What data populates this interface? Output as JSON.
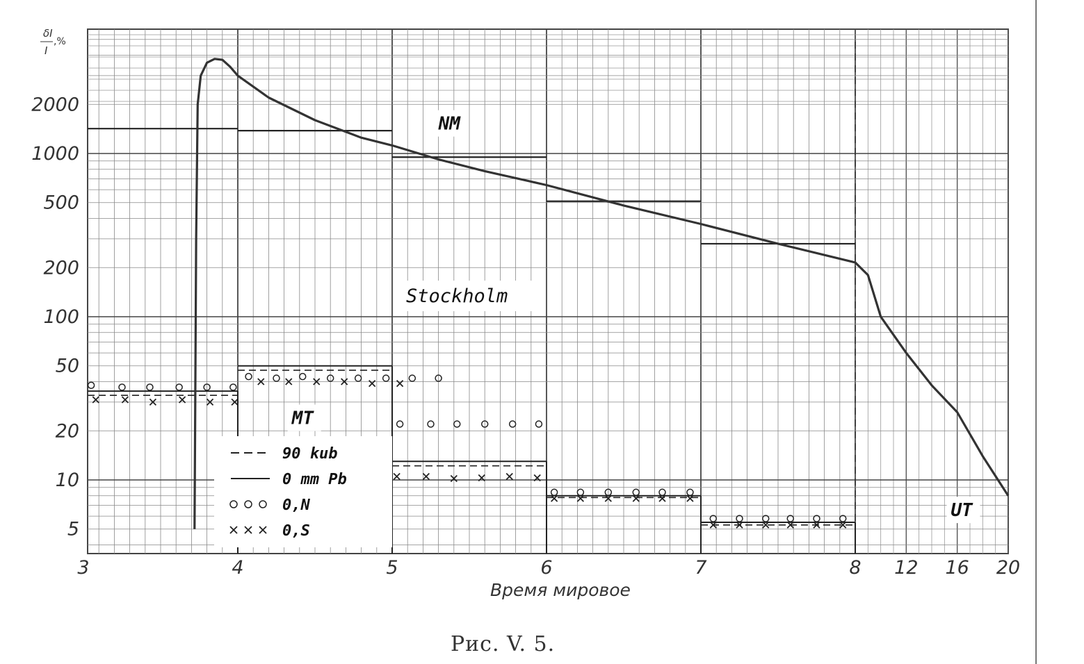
{
  "chart_data": {
    "type": "line",
    "title": "",
    "ylabel_num": "δI",
    "ylabel_den": "I",
    "ylabel_unit": ",%",
    "xlabel": "Время мировое",
    "caption": "Рис. V. 5.",
    "station_label": "Stockholm",
    "yscale": "log",
    "ylim": [
      4,
      5000
    ],
    "yticks": [
      {
        "value": 5,
        "label": "5"
      },
      {
        "value": 10,
        "label": "10"
      },
      {
        "value": 20,
        "label": "20"
      },
      {
        "value": 50,
        "label": "50"
      },
      {
        "value": 100,
        "label": "100"
      },
      {
        "value": 200,
        "label": "200"
      },
      {
        "value": 500,
        "label": "500"
      },
      {
        "value": 1000,
        "label": "1000"
      },
      {
        "value": 2000,
        "label": "2000"
      }
    ],
    "xticks": [
      {
        "value": 3,
        "label": "3"
      },
      {
        "value": 4,
        "label": "4"
      },
      {
        "value": 5,
        "label": "5"
      },
      {
        "value": 6,
        "label": "6"
      },
      {
        "value": 7,
        "label": "7"
      },
      {
        "value": 8,
        "label": "8"
      },
      {
        "value": 12,
        "label": "12"
      },
      {
        "value": 16,
        "label": "16"
      },
      {
        "value": 20,
        "label": "20"
      }
    ],
    "series_labels": [
      {
        "text": "NM",
        "x": 5.3,
        "y": 1400
      },
      {
        "text": "MT",
        "x": 4.35,
        "y": 22
      },
      {
        "text": "UT",
        "x": 15.5,
        "y": 6
      }
    ],
    "legend": [
      {
        "symbol": "dash",
        "label": "90 kub"
      },
      {
        "symbol": "solid",
        "label": "0 mm Pb"
      },
      {
        "symbol": "circle",
        "label": "0,N"
      },
      {
        "symbol": "cross",
        "label": "0,S"
      }
    ],
    "nm_curve": [
      [
        3.72,
        5
      ],
      [
        3.73,
        300
      ],
      [
        3.74,
        2000
      ],
      [
        3.76,
        3000
      ],
      [
        3.8,
        3600
      ],
      [
        3.85,
        3800
      ],
      [
        3.9,
        3750
      ],
      [
        3.95,
        3400
      ],
      [
        4.0,
        3000
      ],
      [
        4.2,
        2200
      ],
      [
        4.5,
        1600
      ],
      [
        4.8,
        1250
      ],
      [
        5.0,
        1120
      ],
      [
        5.3,
        920
      ],
      [
        5.6,
        780
      ],
      [
        6.0,
        640
      ],
      [
        6.5,
        480
      ],
      [
        7.0,
        370
      ],
      [
        7.5,
        280
      ],
      [
        8.0,
        215
      ],
      [
        9.0,
        180
      ],
      [
        10.0,
        100
      ],
      [
        12.0,
        60
      ],
      [
        14.0,
        38
      ],
      [
        16.0,
        26
      ],
      [
        18.0,
        14
      ],
      [
        20.0,
        8
      ]
    ],
    "nm_hourly": [
      {
        "x0": 3.0,
        "x1": 4.0,
        "y": 1420
      },
      {
        "x0": 4.0,
        "x1": 5.0,
        "y": 1380
      },
      {
        "x0": 5.0,
        "x1": 6.0,
        "y": 950
      },
      {
        "x0": 6.0,
        "x1": 7.0,
        "y": 510
      },
      {
        "x0": 7.0,
        "x1": 8.0,
        "y": 280
      }
    ],
    "mt_hourly_0mm": [
      {
        "x0": 3.0,
        "x1": 4.0,
        "y": 35
      },
      {
        "x0": 4.0,
        "x1": 5.0,
        "y": 50
      },
      {
        "x0": 5.0,
        "x1": 6.0,
        "y": 13
      },
      {
        "x0": 6.0,
        "x1": 7.0,
        "y": 8
      },
      {
        "x0": 7.0,
        "x1": 8.0,
        "y": 5.5
      }
    ],
    "mt_hourly_90kub": [
      {
        "x0": 3.0,
        "x1": 4.0,
        "y": 33
      },
      {
        "x0": 4.0,
        "x1": 5.0,
        "y": 47
      },
      {
        "x0": 5.0,
        "x1": 6.0,
        "y": 12.2
      },
      {
        "x0": 6.0,
        "x1": 7.0,
        "y": 7.8
      },
      {
        "x0": 7.0,
        "x1": 8.0,
        "y": 5.3
      }
    ],
    "circles_0N": [
      [
        3.05,
        38
      ],
      [
        3.25,
        37
      ],
      [
        3.43,
        37
      ],
      [
        3.62,
        37
      ],
      [
        3.8,
        37
      ],
      [
        3.97,
        37
      ],
      [
        4.07,
        43
      ],
      [
        4.25,
        42
      ],
      [
        4.42,
        43
      ],
      [
        4.6,
        42
      ],
      [
        4.78,
        42
      ],
      [
        4.96,
        42
      ],
      [
        5.13,
        42
      ],
      [
        5.3,
        42
      ],
      [
        5.05,
        22
      ],
      [
        5.25,
        22
      ],
      [
        5.42,
        22
      ],
      [
        5.6,
        22
      ],
      [
        5.78,
        22
      ],
      [
        5.95,
        22
      ],
      [
        6.05,
        8.4
      ],
      [
        6.22,
        8.4
      ],
      [
        6.4,
        8.4
      ],
      [
        6.58,
        8.4
      ],
      [
        6.75,
        8.4
      ],
      [
        6.93,
        8.4
      ],
      [
        7.08,
        5.8
      ],
      [
        7.25,
        5.8
      ],
      [
        7.42,
        5.8
      ],
      [
        7.58,
        5.8
      ],
      [
        7.75,
        5.8
      ],
      [
        7.92,
        5.8
      ]
    ],
    "crosses_0S": [
      [
        3.08,
        31
      ],
      [
        3.27,
        31
      ],
      [
        3.45,
        30
      ],
      [
        3.64,
        31
      ],
      [
        3.82,
        30
      ],
      [
        3.98,
        30
      ],
      [
        4.15,
        40
      ],
      [
        4.33,
        40
      ],
      [
        4.51,
        40
      ],
      [
        4.69,
        40
      ],
      [
        4.87,
        39
      ],
      [
        5.05,
        39
      ],
      [
        5.03,
        10.5
      ],
      [
        5.22,
        10.5
      ],
      [
        5.4,
        10.2
      ],
      [
        5.58,
        10.3
      ],
      [
        5.76,
        10.5
      ],
      [
        5.94,
        10.3
      ],
      [
        6.05,
        7.7
      ],
      [
        6.22,
        7.7
      ],
      [
        6.4,
        7.7
      ],
      [
        6.58,
        7.7
      ],
      [
        6.75,
        7.7
      ],
      [
        6.93,
        7.7
      ],
      [
        7.08,
        5.3
      ],
      [
        7.25,
        5.3
      ],
      [
        7.42,
        5.3
      ],
      [
        7.58,
        5.3
      ],
      [
        7.75,
        5.3
      ],
      [
        7.92,
        5.3
      ]
    ],
    "grid": true,
    "event_marker_x": 8
  }
}
